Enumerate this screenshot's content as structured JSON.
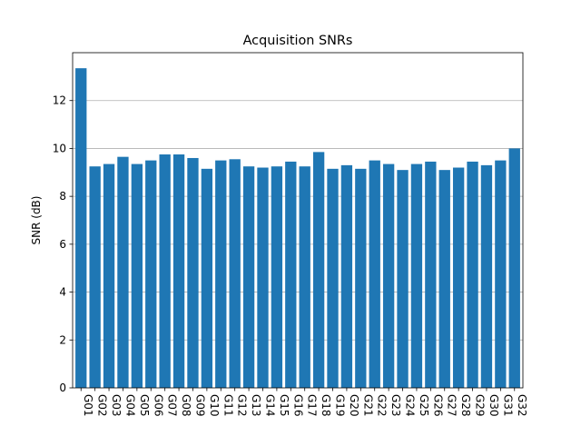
{
  "chart_data": {
    "type": "bar",
    "title": "Acquisition SNRs",
    "xlabel": "",
    "ylabel": "SNR (dB)",
    "ylim": [
      0,
      14
    ],
    "yticks": [
      0,
      2,
      4,
      6,
      8,
      10,
      12
    ],
    "grid": "y",
    "bar_color": "#1f77b4",
    "categories": [
      "G01",
      "G02",
      "G03",
      "G04",
      "G05",
      "G06",
      "G07",
      "G08",
      "G09",
      "G10",
      "G11",
      "G12",
      "G13",
      "G14",
      "G15",
      "G16",
      "G17",
      "G18",
      "G19",
      "G20",
      "G21",
      "G22",
      "G23",
      "G24",
      "G25",
      "G26",
      "G27",
      "G28",
      "G29",
      "G30",
      "G31",
      "G32"
    ],
    "values": [
      13.35,
      9.25,
      9.35,
      9.65,
      9.35,
      9.5,
      9.75,
      9.75,
      9.6,
      9.15,
      9.5,
      9.55,
      9.25,
      9.2,
      9.25,
      9.45,
      9.25,
      9.85,
      9.15,
      9.3,
      9.15,
      9.5,
      9.35,
      9.1,
      9.35,
      9.45,
      9.1,
      9.2,
      9.45,
      9.3,
      9.5,
      10.0
    ]
  }
}
